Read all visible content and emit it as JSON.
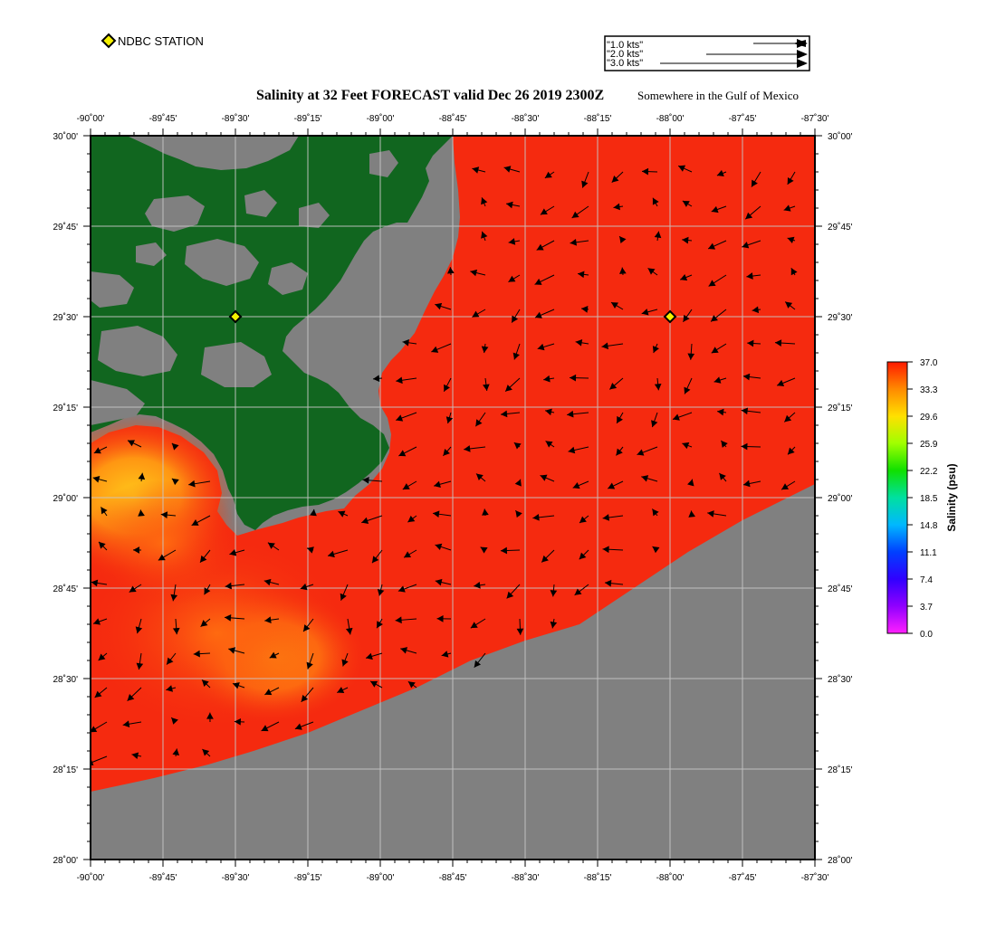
{
  "map": {
    "title": "Salinity at 32 Feet FORECAST valid Dec 26 2019 2300Z",
    "subtitle": "Somewhere in the Gulf of Mexico",
    "lon_ticks": [
      "-90˚00'",
      "-89˚45'",
      "-89˚30'",
      "-89˚15'",
      "-89˚00'",
      "-88˚45'",
      "-88˚30'",
      "-88˚15'",
      "-88˚00'",
      "-87˚45'",
      "-87˚30'"
    ],
    "lat_ticks": [
      "30˚00'",
      "29˚45'",
      "29˚30'",
      "29˚15'",
      "29˚00'",
      "28˚45'",
      "28˚30'",
      "28˚15'",
      "28˚00'"
    ],
    "lon_range": [
      -90.0,
      -87.5
    ],
    "lat_range": [
      28.0,
      30.0
    ],
    "grid": true,
    "colors": {
      "land": "#11661f",
      "no_data": "#808080",
      "high_salinity": "#f52a0f",
      "mid_salinity": "#ffa010",
      "arrow": "#000000",
      "station_marker": "#f4f000"
    }
  },
  "legend": {
    "station_label": "NDBC STATION",
    "vector_labels": [
      "\"1.0 kts\"",
      "\"2.0 kts\"",
      "\"3.0 kts\""
    ]
  },
  "stations": [
    {
      "lon": -89.5,
      "lat": 29.5
    },
    {
      "lon": -88.0,
      "lat": 29.5
    }
  ],
  "colorbar": {
    "label": "Salinity (psu)",
    "ticks": [
      "37.0",
      "33.3",
      "29.6",
      "25.9",
      "22.2",
      "18.5",
      "14.8",
      "11.1",
      "7.4",
      "3.7",
      "0.0"
    ],
    "min": 0.0,
    "max": 37.0
  }
}
